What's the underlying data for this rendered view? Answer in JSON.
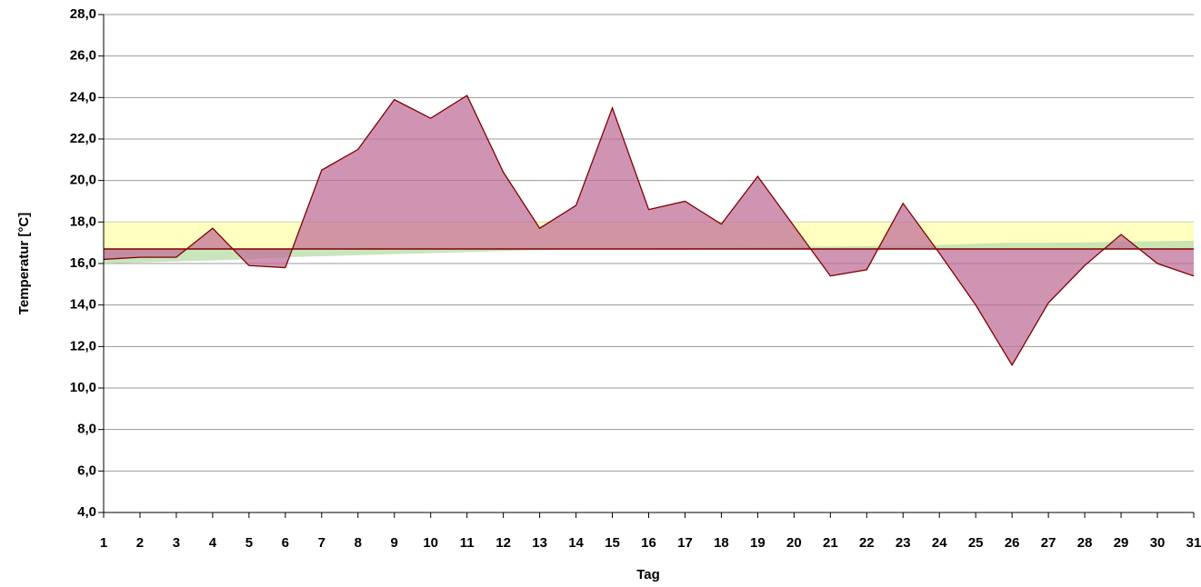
{
  "chart_data": {
    "type": "area",
    "xlabel": "Tag",
    "ylabel": "Temperatur [°C]",
    "categories": [
      "1",
      "2",
      "3",
      "4",
      "5",
      "6",
      "7",
      "8",
      "9",
      "10",
      "11",
      "12",
      "13",
      "14",
      "15",
      "16",
      "17",
      "18",
      "19",
      "20",
      "21",
      "22",
      "23",
      "24",
      "25",
      "26",
      "27",
      "28",
      "29",
      "30",
      "31"
    ],
    "series": [
      {
        "color": "#800000",
        "fill": "#c0709a",
        "values": [
          16.2,
          16.3,
          16.3,
          17.7,
          15.9,
          15.8,
          20.5,
          21.5,
          23.9,
          23.0,
          24.1,
          20.4,
          17.7,
          18.8,
          23.5,
          18.6,
          19.0,
          17.9,
          20.2,
          17.8,
          15.4,
          15.7,
          18.9,
          16.5,
          14.0,
          11.1,
          14.1,
          15.9,
          17.4,
          16.0,
          15.4
        ]
      }
    ],
    "mean": {
      "color": "#bfe0b0",
      "values": [
        16.0,
        16.05,
        16.1,
        16.15,
        16.2,
        16.3,
        16.35,
        16.4,
        16.45,
        16.5,
        16.55,
        16.6,
        16.65,
        16.7,
        16.7,
        16.72,
        16.74,
        16.76,
        16.78,
        16.8,
        16.82,
        16.84,
        16.86,
        16.9,
        16.95,
        17.0,
        17.0,
        17.02,
        17.05,
        17.08,
        17.1
      ]
    },
    "reference_line": 16.7,
    "reference_color": "#800000",
    "bands": [
      {
        "from": 16.7,
        "to": 18.0,
        "color": "#ffffc0"
      }
    ],
    "ylim": [
      4.0,
      28.0
    ],
    "yticks": [
      {
        "value": 4,
        "label": "4,0"
      },
      {
        "value": 6,
        "label": "6,0"
      },
      {
        "value": 8,
        "label": "8,0"
      },
      {
        "value": 10,
        "label": "10,0"
      },
      {
        "value": 12,
        "label": "12,0"
      },
      {
        "value": 14,
        "label": "14,0"
      },
      {
        "value": 16,
        "label": "16,0"
      },
      {
        "value": 18,
        "label": "18,0"
      },
      {
        "value": 20,
        "label": "20,0"
      },
      {
        "value": 22,
        "label": "22,0"
      },
      {
        "value": 24,
        "label": "24,0"
      },
      {
        "value": 26,
        "label": "26,0"
      },
      {
        "value": 28,
        "label": "28,0"
      }
    ],
    "grid": true
  }
}
